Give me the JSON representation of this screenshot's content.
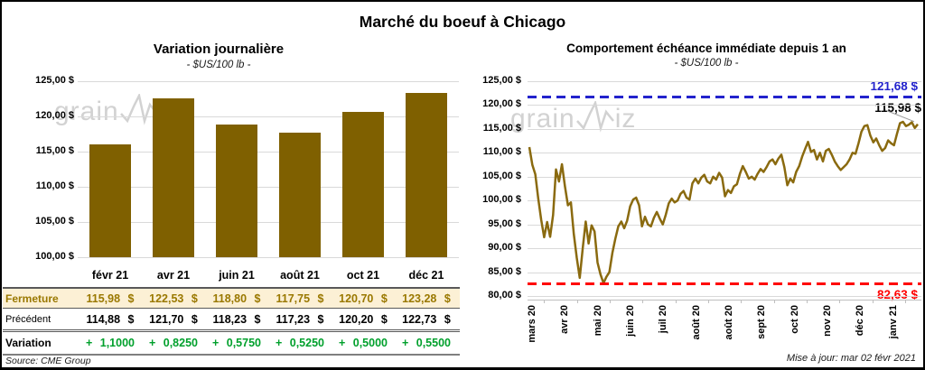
{
  "page": {
    "title": "Marché du boeuf à Chicago",
    "source": "Source: CME Group",
    "updated": "Mise à jour: mar 02 févr 2021",
    "watermark_left": "grain",
    "watermark_right": "iz"
  },
  "colors": {
    "bar": "#7F6000",
    "line": "#8A6A0F",
    "grid": "#D9D9D9",
    "axis": "#BFBFBF",
    "close_bg": "#FCF0D5",
    "close_text": "#9A7800",
    "variation_green": "#00A02C",
    "high_blue": "#2323CC",
    "low_red": "#FF0000",
    "watermark_gray": "#D2D2D2"
  },
  "chart_data": [
    {
      "type": "bar",
      "title": "Variation journalière",
      "subtitle": "- $US/100 lb -",
      "categories": [
        "févr 21",
        "avr 21",
        "juin 21",
        "août 21",
        "oct 21",
        "déc 21"
      ],
      "values": [
        115.98,
        122.53,
        118.8,
        117.75,
        120.7,
        123.28
      ],
      "ylabel": "$US/100 lb",
      "ylim": [
        100,
        125
      ],
      "y_ticks": [
        "125,00 $",
        "120,00 $",
        "115,00 $",
        "110,00 $",
        "105,00 $",
        "100,00 $"
      ],
      "grid": true,
      "legend": "none"
    },
    {
      "type": "line",
      "title": "Comportement échéance immédiate depuis 1 an",
      "subtitle": "- $US/100 lb -",
      "ylabel": "$US/100 lb",
      "ylim": [
        80,
        125
      ],
      "y_ticks": [
        "125,00 $",
        "120,00 $",
        "115,00 $",
        "110,00 $",
        "105,00 $",
        "100,00 $",
        "95,00 $",
        "90,00 $",
        "85,00 $",
        "80,00 $"
      ],
      "x_ticks": [
        "mars 20",
        "avr 20",
        "mai 20",
        "juin 20",
        "juil 20",
        "août 20",
        "août 20",
        "sept 20",
        "oct 20",
        "nov 20",
        "déc 20",
        "janv 21"
      ],
      "values": [
        111.2,
        107.5,
        105.5,
        100.5,
        96.0,
        92.3,
        95.5,
        92.4,
        97.0,
        106.5,
        104.0,
        107.6,
        103.0,
        99.0,
        99.6,
        93.0,
        88.0,
        83.8,
        90.0,
        95.6,
        91.0,
        94.8,
        93.5,
        87.0,
        84.5,
        82.7,
        84.0,
        85.0,
        89.0,
        92.0,
        94.6,
        95.6,
        94.2,
        95.8,
        98.8,
        100.2,
        100.6,
        99.0,
        94.6,
        96.6,
        95.0,
        94.6,
        96.4,
        97.6,
        96.2,
        95.0,
        97.0,
        99.4,
        100.4,
        99.6,
        100.0,
        101.4,
        102.0,
        100.6,
        100.2,
        103.6,
        104.6,
        103.6,
        104.8,
        105.4,
        104.0,
        103.6,
        105.0,
        104.4,
        105.8,
        104.8,
        100.9,
        102.2,
        101.6,
        103.0,
        103.4,
        105.6,
        107.2,
        106.0,
        104.6,
        105.0,
        104.4,
        105.6,
        106.6,
        106.0,
        107.0,
        108.2,
        108.6,
        107.6,
        108.8,
        109.6,
        107.0,
        103.2,
        104.6,
        103.8,
        106.0,
        107.2,
        109.2,
        110.8,
        112.3,
        110.2,
        110.6,
        108.6,
        110.0,
        108.2,
        110.4,
        110.8,
        109.6,
        108.2,
        107.2,
        106.4,
        107.0,
        107.6,
        108.6,
        110.0,
        109.8,
        112.0,
        114.4,
        115.6,
        115.8,
        113.6,
        112.2,
        113.0,
        111.6,
        110.4,
        111.0,
        112.6,
        112.0,
        111.6,
        114.0,
        116.2,
        116.5,
        115.6,
        115.9,
        116.4,
        115.2,
        115.98
      ],
      "annotations": {
        "high_line": {
          "value": 121.68,
          "label": "121,68 $",
          "color": "#2323CC"
        },
        "low_line": {
          "value": 82.63,
          "label": "82,63 $",
          "color": "#FF0000"
        },
        "last_point": {
          "value": 115.98,
          "label": "115,98 $",
          "color": "#000000"
        }
      },
      "grid": true,
      "legend": "none"
    }
  ],
  "table": {
    "headers": [
      "",
      "févr 21",
      "avr 21",
      "juin 21",
      "août 21",
      "oct 21",
      "déc 21"
    ],
    "rows": [
      {
        "label": "Fermeture",
        "values": [
          "115,98 $",
          "122,53 $",
          "118,80 $",
          "117,75 $",
          "120,70 $",
          "123,28 $"
        ]
      },
      {
        "label": "Précédent",
        "values": [
          "114,88 $",
          "121,70 $",
          "118,23 $",
          "117,23 $",
          "120,20 $",
          "122,73 $"
        ]
      },
      {
        "label": "Variation",
        "values": [
          "+ 1,1000",
          "+ 0,8250",
          "+ 0,5750",
          "+ 0,5250",
          "+ 0,5000",
          "+ 0,5500"
        ]
      }
    ]
  }
}
